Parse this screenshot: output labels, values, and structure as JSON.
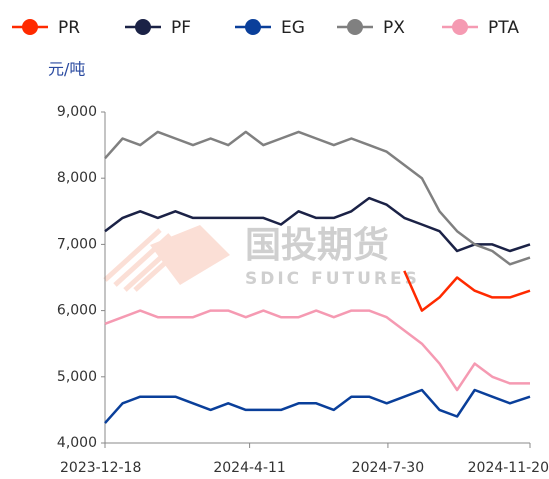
{
  "chart_data": {
    "type": "line",
    "y_unit": "元/吨",
    "watermark": "国投期货",
    "watermark_sub": "SDIC FUTURES",
    "x": [
      "2023-12-18",
      "2024-01-01",
      "2024-01-15",
      "2024-01-29",
      "2024-02-12",
      "2024-02-26",
      "2024-03-11",
      "2024-03-25",
      "2024-04-08",
      "2024-04-22",
      "2024-05-06",
      "2024-05-20",
      "2024-06-03",
      "2024-06-17",
      "2024-07-01",
      "2024-07-15",
      "2024-07-29",
      "2024-08-12",
      "2024-08-26",
      "2024-09-09",
      "2024-09-23",
      "2024-10-07",
      "2024-10-21",
      "2024-11-04",
      "2024-11-20"
    ],
    "xlim": [
      "2023-12-18",
      "2024-11-20"
    ],
    "xticks": [
      {
        "value": "2023-12-18",
        "label": "2023-12-18"
      },
      {
        "value": "2024-04-11",
        "label": "2024-4-11"
      },
      {
        "value": "2024-07-30",
        "label": "2024-7-30"
      },
      {
        "value": "2024-11-20",
        "label": "2024-11-20"
      }
    ],
    "ylim": [
      4000,
      9000
    ],
    "yticks": [
      {
        "value": 4000,
        "label": "4,000"
      },
      {
        "value": 5000,
        "label": "5,000"
      },
      {
        "value": 6000,
        "label": "6,000"
      },
      {
        "value": 7000,
        "label": "7,000"
      },
      {
        "value": 8000,
        "label": "8,000"
      },
      {
        "value": 9000,
        "label": "9,000"
      }
    ],
    "grid": false,
    "legend": "top",
    "series": [
      {
        "name": "PR",
        "color": "#ff2a00",
        "values": [
          null,
          null,
          null,
          null,
          null,
          null,
          null,
          null,
          null,
          null,
          null,
          null,
          null,
          null,
          null,
          null,
          null,
          6600,
          6000,
          6200,
          6500,
          6300,
          6200,
          6200,
          6300
        ]
      },
      {
        "name": "PF",
        "color": "#1b2246",
        "values": [
          7200,
          7400,
          7500,
          7400,
          7500,
          7400,
          7400,
          7400,
          7400,
          7400,
          7300,
          7500,
          7400,
          7400,
          7500,
          7700,
          7600,
          7400,
          7300,
          7200,
          6900,
          7000,
          7000,
          6900,
          7000
        ]
      },
      {
        "name": "EG",
        "color": "#0a3f9a",
        "values": [
          4300,
          4600,
          4700,
          4700,
          4700,
          4600,
          4500,
          4600,
          4500,
          4500,
          4500,
          4600,
          4600,
          4500,
          4700,
          4700,
          4600,
          4700,
          4800,
          4500,
          4400,
          4800,
          4700,
          4600,
          4700
        ]
      },
      {
        "name": "PX",
        "color": "#808080",
        "values": [
          8300,
          8600,
          8500,
          8700,
          8600,
          8500,
          8600,
          8500,
          8700,
          8500,
          8600,
          8700,
          8600,
          8500,
          8600,
          8500,
          8400,
          8200,
          8000,
          7500,
          7200,
          7000,
          6900,
          6700,
          6800
        ]
      },
      {
        "name": "PTA",
        "color": "#f59ab2",
        "values": [
          5800,
          5900,
          6000,
          5900,
          5900,
          5900,
          6000,
          6000,
          5900,
          6000,
          5900,
          5900,
          6000,
          5900,
          6000,
          6000,
          5900,
          5700,
          5500,
          5200,
          4800,
          5200,
          5000,
          4900,
          4900
        ]
      }
    ]
  }
}
